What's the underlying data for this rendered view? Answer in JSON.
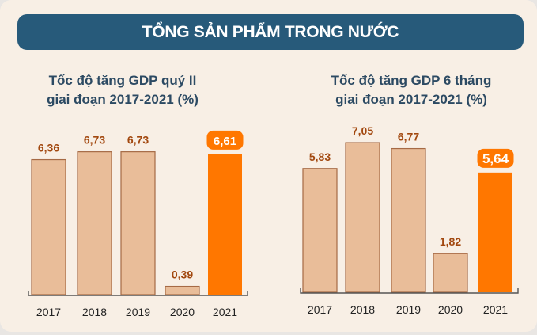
{
  "header": {
    "title": "TỔNG SẢN PHẨM TRONG NƯỚC"
  },
  "colors": {
    "banner": "#275a7a",
    "bar": "#e9bd99",
    "bar_border": "#a66a45",
    "highlight": "#ff7700",
    "value_label": "#a2480f",
    "background": "#f8efe5"
  },
  "chart_data": [
    {
      "type": "bar",
      "title_line1": "Tốc độ tăng GDP quý II",
      "title_line2": "giai đoạn 2017-2021 (%)",
      "categories": [
        "2017",
        "2018",
        "2019",
        "2020",
        "2021"
      ],
      "values": [
        6.36,
        6.73,
        6.73,
        0.39,
        6.61
      ],
      "value_labels": [
        "6,36",
        "6,73",
        "6,73",
        "0,39",
        "6,61"
      ],
      "highlight_index": 4
    },
    {
      "type": "bar",
      "title_line1": "Tốc độ tăng GDP 6 tháng",
      "title_line2": "giai đoạn 2017-2021 (%)",
      "categories": [
        "2017",
        "2018",
        "2019",
        "2020",
        "2021"
      ],
      "values": [
        5.83,
        7.05,
        6.77,
        1.82,
        5.64
      ],
      "value_labels": [
        "5,83",
        "7,05",
        "6,77",
        "1,82",
        "5,64"
      ],
      "highlight_index": 4
    }
  ]
}
